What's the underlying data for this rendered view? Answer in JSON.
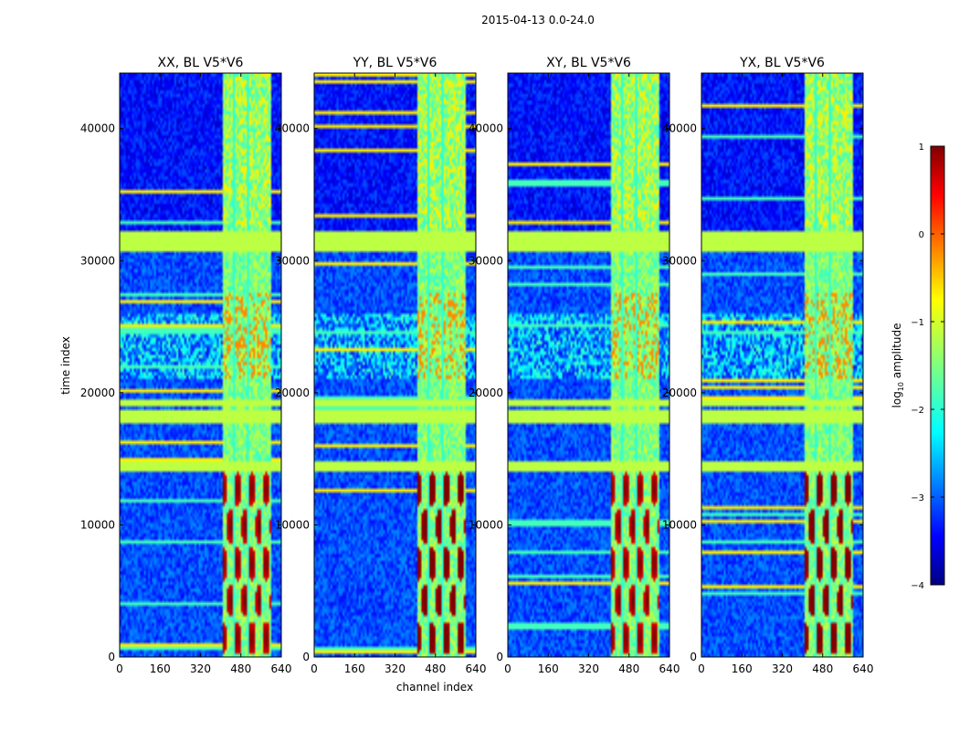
{
  "chart_data": {
    "type": "heatmap",
    "title": "2015-04-13 0.0-24.0",
    "xlabel": "channel index",
    "ylabel": "time index",
    "xlim": [
      0,
      640
    ],
    "ylim": [
      0,
      44200
    ],
    "x_ticks": [
      0,
      160,
      320,
      480,
      640
    ],
    "y_ticks": [
      0,
      10000,
      20000,
      30000,
      40000
    ],
    "panels": [
      {
        "title": "XX, BL V5*V6"
      },
      {
        "title": "YY, BL V5*V6"
      },
      {
        "title": "XY, BL V5*V6"
      },
      {
        "title": "YX, BL V5*V6"
      }
    ],
    "colorbar": {
      "label": "log10 amplitude",
      "label_prefix": "log",
      "label_sub": "10",
      "label_suffix": " amplitude",
      "range": [
        -4,
        1
      ],
      "ticks": [
        1,
        0,
        -1,
        -2,
        -3,
        -4
      ],
      "tick_labels": [
        "1",
        "0",
        "−1",
        "−2",
        "−3",
        "−4"
      ],
      "colormap": "jet"
    },
    "features": {
      "rfi_channel_band": [
        405,
        600
      ],
      "flagged_time_bands": [
        [
          30800,
          32200
        ],
        [
          18900,
          19400
        ],
        [
          17700,
          18800
        ],
        [
          14100,
          14700
        ]
      ],
      "value_scale": {
        "background": -3,
        "flagged": -1.2,
        "rfi_band": -1.5,
        "rfi_peak": 0.6
      }
    }
  }
}
